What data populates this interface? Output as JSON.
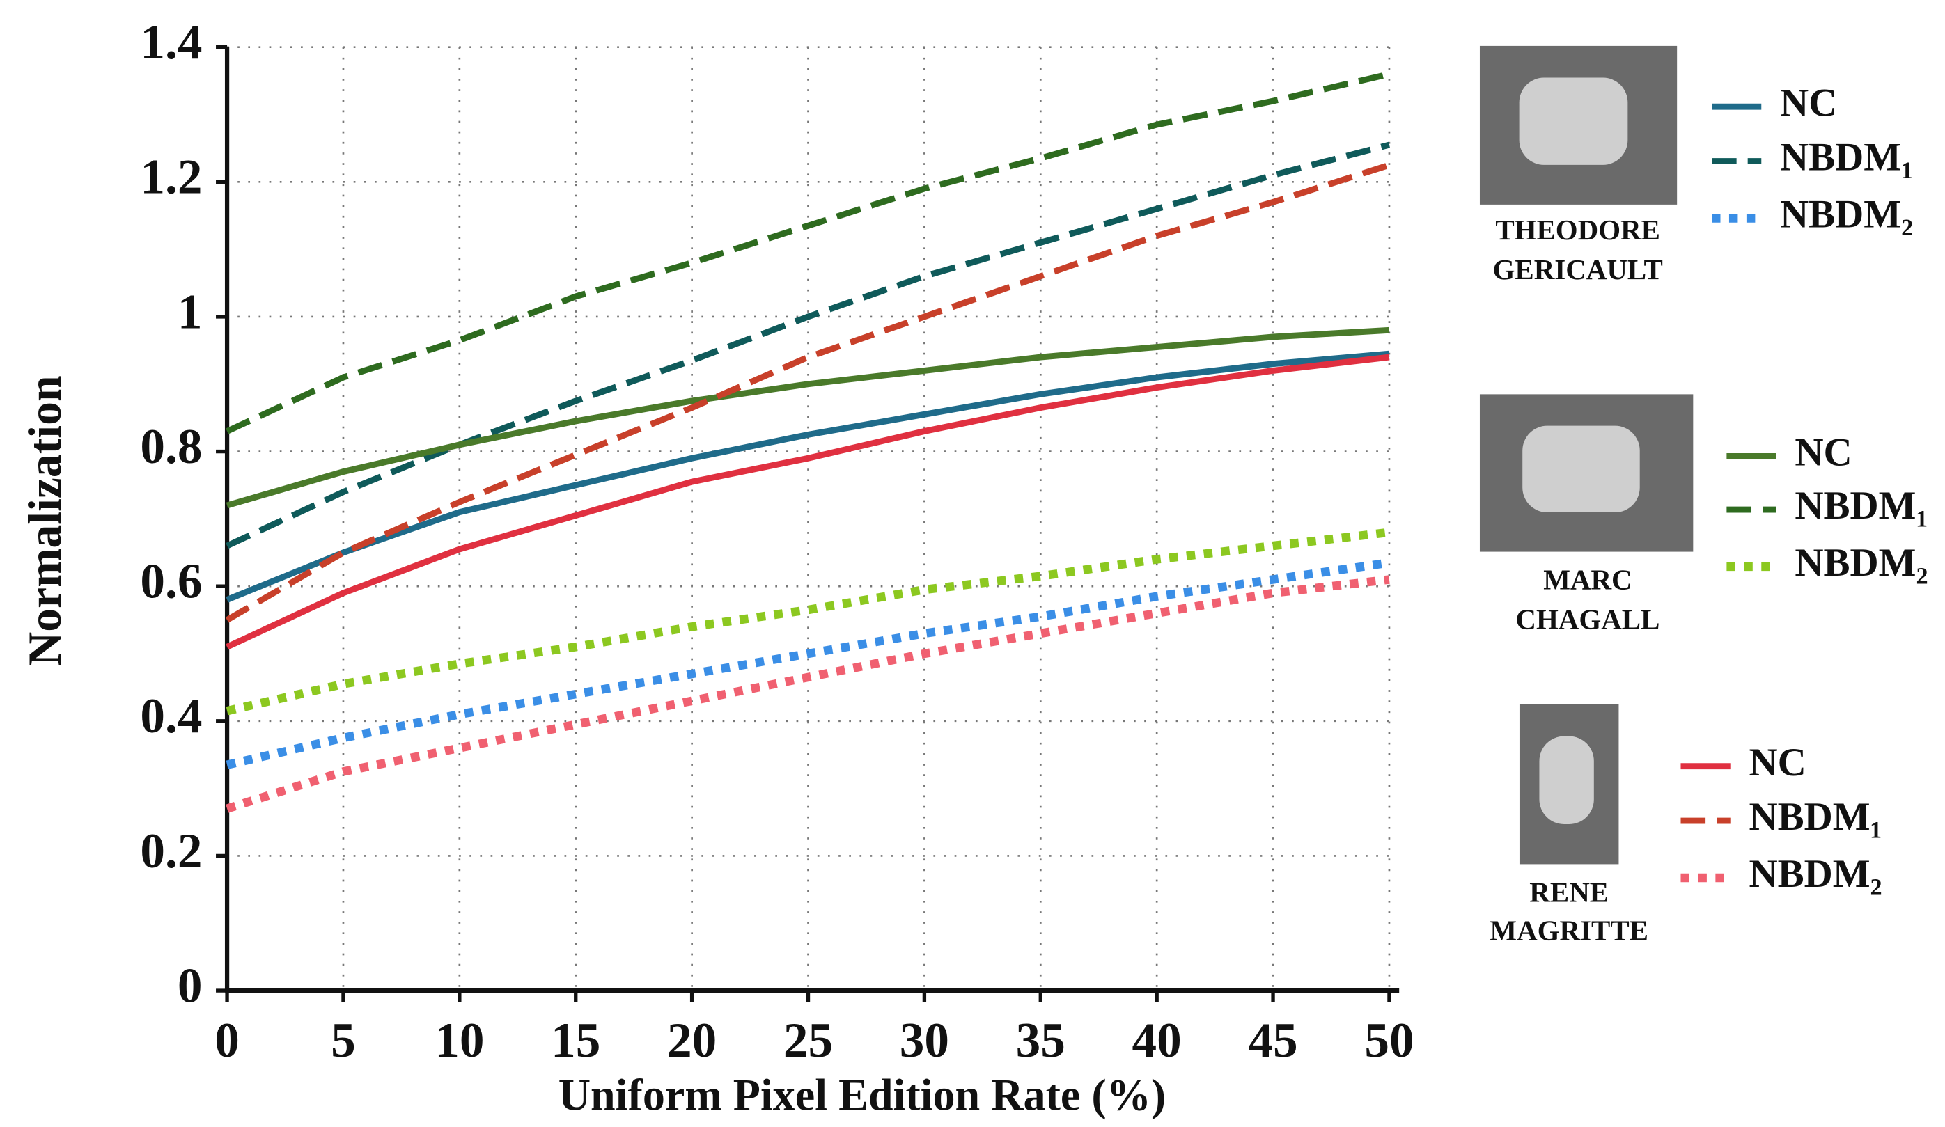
{
  "chart_data": {
    "type": "line",
    "xlabel": "Uniform Pixel Edition Rate (%)",
    "ylabel": "Normalization",
    "x": [
      0,
      5,
      10,
      15,
      20,
      25,
      30,
      35,
      40,
      45,
      50
    ],
    "xlim": [
      0,
      50
    ],
    "xticks": [
      0,
      5,
      10,
      15,
      20,
      25,
      30,
      35,
      40,
      45,
      50
    ],
    "ylim": [
      0,
      1.4
    ],
    "yticks": [
      0,
      0.2,
      0.4,
      0.6,
      0.8,
      1,
      1.2,
      1.4
    ],
    "grid": true,
    "legend_groups": [
      {
        "artist": [
          "THEODORE",
          "GERICAULT"
        ]
      },
      {
        "artist": [
          "MARC",
          "CHAGALL"
        ]
      },
      {
        "artist": [
          "RENE",
          "MAGRITTE"
        ]
      }
    ],
    "series": [
      {
        "name": "NC",
        "color": "#1f6b8a",
        "style": "solid",
        "values": [
          0.58,
          0.65,
          0.71,
          0.75,
          0.79,
          0.825,
          0.855,
          0.885,
          0.91,
          0.93,
          0.945
        ]
      },
      {
        "name": "NBDM₁",
        "color": "#0f5a5a",
        "style": "dashed",
        "values": [
          0.66,
          0.74,
          0.81,
          0.875,
          0.935,
          1.0,
          1.06,
          1.11,
          1.16,
          1.21,
          1.255
        ]
      },
      {
        "name": "NBDM₂",
        "color": "#3a8ee6",
        "style": "dotted",
        "values": [
          0.335,
          0.375,
          0.41,
          0.44,
          0.47,
          0.5,
          0.53,
          0.555,
          0.585,
          0.61,
          0.635
        ]
      },
      {
        "name": "NC",
        "color": "#4a7a2a",
        "style": "solid",
        "values": [
          0.72,
          0.77,
          0.81,
          0.845,
          0.875,
          0.9,
          0.92,
          0.94,
          0.955,
          0.97,
          0.98
        ]
      },
      {
        "name": "NBDM₁",
        "color": "#2e6b1f",
        "style": "dashed",
        "values": [
          0.83,
          0.91,
          0.965,
          1.03,
          1.08,
          1.135,
          1.19,
          1.235,
          1.285,
          1.32,
          1.36
        ]
      },
      {
        "name": "NBDM₂",
        "color": "#8cc820",
        "style": "dotted",
        "values": [
          0.415,
          0.455,
          0.485,
          0.51,
          0.54,
          0.565,
          0.595,
          0.615,
          0.64,
          0.66,
          0.68
        ]
      },
      {
        "name": "NC",
        "color": "#e03040",
        "style": "solid",
        "values": [
          0.51,
          0.59,
          0.655,
          0.705,
          0.755,
          0.79,
          0.83,
          0.865,
          0.895,
          0.92,
          0.94
        ]
      },
      {
        "name": "NBDM₁",
        "color": "#c8402a",
        "style": "dashed",
        "values": [
          0.55,
          0.65,
          0.725,
          0.795,
          0.865,
          0.94,
          1.0,
          1.06,
          1.12,
          1.17,
          1.225
        ]
      },
      {
        "name": "NBDM₂",
        "color": "#f06070",
        "style": "dotted",
        "values": [
          0.27,
          0.325,
          0.36,
          0.395,
          0.43,
          0.465,
          0.5,
          0.53,
          0.56,
          0.59,
          0.61
        ]
      }
    ]
  }
}
